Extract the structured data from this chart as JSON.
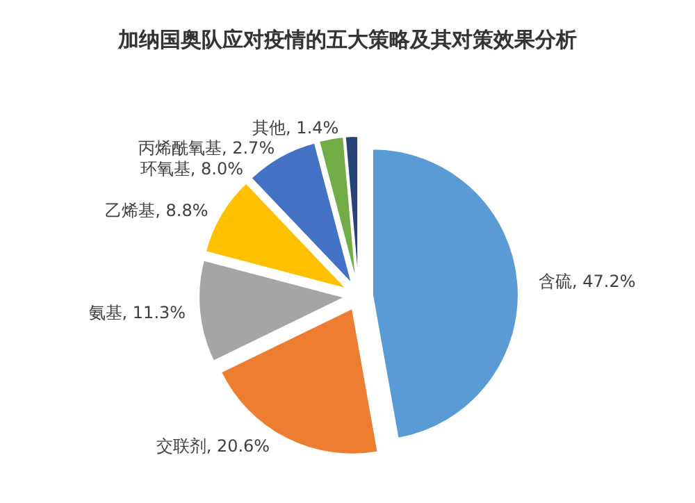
{
  "chart_data": {
    "type": "pie",
    "title": "加纳国奥队应对疫情的五大策略及其对策效果分析",
    "categories": [
      "含硫",
      "交联剂",
      "氨基",
      "乙烯基",
      "环氧基",
      "丙烯酰氧基",
      "其他"
    ],
    "values": [
      47.2,
      20.6,
      11.3,
      8.8,
      8.0,
      2.7,
      1.4
    ],
    "colors": [
      "#5b9bd5",
      "#ed7d31",
      "#a5a5a5",
      "#ffc000",
      "#4472c4",
      "#70ad47",
      "#264478"
    ],
    "value_labels": [
      "47.2%",
      "20.6%",
      "11.3%",
      "8.8%",
      "8.0%",
      "2.7%",
      "1.4%"
    ],
    "legend": false
  }
}
